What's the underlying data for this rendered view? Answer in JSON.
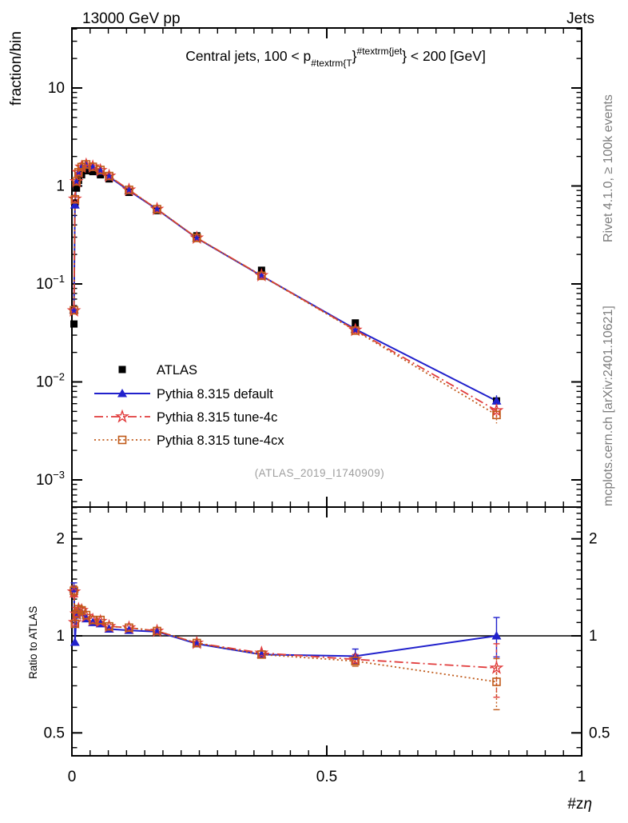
{
  "header": {
    "left": "13000 GeV pp",
    "right": "Jets"
  },
  "side_notes": {
    "rivet": "Rivet 4.1.0, ≥ 100k events",
    "mcplots": "mcplots.cern.ch [arXiv:2401.10621]"
  },
  "main_panel": {
    "ylabel": "fraction/bin",
    "watermark": "(ATLAS_2019_I1740909)",
    "title": {
      "p1": "Central jets, 100 < p",
      "p2": "#textrm{T",
      "p3": "}",
      "p4": "#textrm{jet",
      "p5": "} < 200 [GeV]"
    }
  },
  "ratio_panel": {
    "ylabel": "Ratio to ATLAS",
    "reference_label": "1"
  },
  "xaxis": {
    "label_prefix": "#z",
    "label_eta": "η"
  },
  "legend": {
    "items": [
      {
        "label": "ATLAS"
      },
      {
        "label": "Pythia 8.315 default"
      },
      {
        "label": "Pythia 8.315 tune-4c"
      },
      {
        "label": "Pythia 8.315 tune-4cx"
      }
    ]
  },
  "chart_data": {
    "type": "line",
    "title": "Central jets, 100 < pT(jet) < 200 [GeV]",
    "xlabel": "#zη",
    "ylabel": "fraction/bin",
    "ylabel_ratio": "Ratio to ATLAS",
    "grid": false,
    "legend_position": "left-middle",
    "x_range": [
      0,
      1
    ],
    "y_range_main_log": [
      0.00053,
      41
    ],
    "y_range_ratio_log": [
      0.424,
      2.51
    ],
    "x_ticks": [
      {
        "v": 0,
        "label": "0"
      },
      {
        "v": 0.5,
        "label": "0.5"
      },
      {
        "v": 1,
        "label": "1"
      }
    ],
    "y_ticks_main": [
      {
        "v": 10,
        "label": "10",
        "exp": ""
      },
      {
        "v": 1,
        "label": "1",
        "exp": ""
      },
      {
        "v": 0.1,
        "label": "10",
        "exp": "−1"
      },
      {
        "v": 0.01,
        "label": "10",
        "exp": "−2"
      },
      {
        "v": 0.001,
        "label": "10",
        "exp": "−3"
      }
    ],
    "y_ticks_ratio": [
      {
        "v": 2,
        "label": "2"
      },
      {
        "v": 1,
        "label": "1"
      },
      {
        "v": 0.5,
        "label": "0.5"
      }
    ],
    "ratio_reference": 1,
    "x": [
      0.004,
      0.006,
      0.009,
      0.013,
      0.019,
      0.028,
      0.041,
      0.056,
      0.073,
      0.112,
      0.167,
      0.245,
      0.372,
      0.556,
      0.833
    ],
    "series": [
      {
        "name": "ATLAS",
        "color": "#000000",
        "marker": "filled-square",
        "line": "none",
        "values": [
          0.039,
          0.67,
          0.95,
          1.14,
          1.3,
          1.43,
          1.4,
          1.3,
          1.18,
          0.86,
          0.56,
          0.31,
          0.138,
          0.04,
          0.0064
        ]
      },
      {
        "name": "Pythia 8.315 default",
        "color": "#2121cc",
        "marker": "filled-triangle",
        "line": "solid",
        "values": [
          0.0546,
          0.64,
          1.102,
          1.357,
          1.534,
          1.616,
          1.54,
          1.417,
          1.239,
          0.894,
          0.577,
          0.293,
          0.121,
          0.0346,
          0.0064
        ],
        "ratio": [
          1.4,
          0.955,
          1.16,
          1.19,
          1.18,
          1.13,
          1.1,
          1.09,
          1.05,
          1.04,
          1.03,
          0.945,
          0.875,
          0.865,
          1.0
        ],
        "ratio_err": [
          0.06,
          0.02,
          0.015,
          0.012,
          0.01,
          0.008,
          0.008,
          0.008,
          0.01,
          0.012,
          0.015,
          0.02,
          0.025,
          0.045,
          0.14
        ]
      },
      {
        "name": "Pythia 8.315 tune-4c",
        "color": "#e13c3c",
        "marker": "open-star",
        "line": "dash-dot",
        "values": [
          0.0534,
          0.737,
          1.112,
          1.379,
          1.56,
          1.645,
          1.568,
          1.443,
          1.263,
          0.912,
          0.58,
          0.295,
          0.122,
          0.0338,
          0.0051
        ],
        "ratio": [
          1.37,
          1.1,
          1.17,
          1.21,
          1.2,
          1.15,
          1.12,
          1.11,
          1.07,
          1.06,
          1.035,
          0.95,
          0.885,
          0.845,
          0.795
        ],
        "ratio_err": [
          0.05,
          0.02,
          0.015,
          0.012,
          0.01,
          0.008,
          0.008,
          0.008,
          0.01,
          0.012,
          0.015,
          0.02,
          0.025,
          0.03,
          0.15
        ]
      },
      {
        "name": "Pythia 8.315 tune-4cx",
        "color": "#c05a1a",
        "marker": "open-square",
        "line": "dotted",
        "values": [
          0.0538,
          0.73,
          1.112,
          1.379,
          1.56,
          1.659,
          1.568,
          1.456,
          1.263,
          0.912,
          0.58,
          0.295,
          0.121,
          0.0334,
          0.0046
        ],
        "ratio": [
          1.38,
          1.09,
          1.17,
          1.21,
          1.2,
          1.16,
          1.12,
          1.12,
          1.07,
          1.06,
          1.035,
          0.95,
          0.875,
          0.835,
          0.72
        ],
        "ratio_err": [
          0.05,
          0.02,
          0.015,
          0.012,
          0.01,
          0.008,
          0.008,
          0.008,
          0.01,
          0.012,
          0.015,
          0.02,
          0.025,
          0.03,
          0.13
        ]
      }
    ]
  }
}
